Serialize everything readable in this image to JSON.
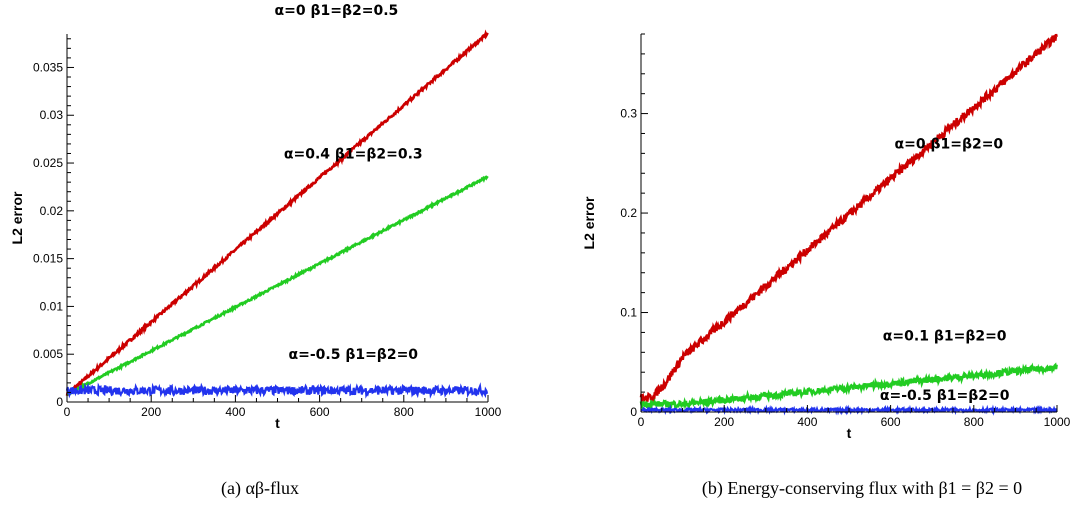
{
  "chart_data": [
    {
      "type": "line",
      "xlabel": "t",
      "ylabel": "L2 error",
      "xlim": [
        0,
        1000
      ],
      "ylim": [
        0,
        0.0385
      ],
      "xticks": [
        0,
        200,
        400,
        600,
        800,
        1000
      ],
      "xtick_labels": [
        "0",
        "200",
        "400",
        "600",
        "800",
        "1000"
      ],
      "yticks": [
        0,
        0.005,
        0.01,
        0.015,
        0.02,
        0.025,
        0.03,
        0.035
      ],
      "ytick_labels": [
        "0",
        "0.005",
        "0.01",
        "0.015",
        "0.02",
        "0.025",
        "0.03",
        "0.035"
      ],
      "grid": false,
      "caption": "(a)  αβ-flux",
      "series": [
        {
          "name": "α=0 β1=β2=0.5",
          "color": "#cc0000",
          "x": [
            0,
            1000
          ],
          "y": [
            0.0008,
            0.0386
          ],
          "noise": 0.00015
        },
        {
          "name": "α=0.4 β1=β2=0.3",
          "color": "#22cc22",
          "x": [
            0,
            1000
          ],
          "y": [
            0.0008,
            0.0236
          ],
          "noise": 0.0001
        },
        {
          "name": "α=-0.5 β1=β2=0",
          "color": "#2233ee",
          "x": [
            0,
            1000
          ],
          "y": [
            0.0012,
            0.0012
          ],
          "noise": 0.00045
        }
      ],
      "annotations": [
        {
          "text": "α=0 β1=β2=0.5",
          "x": 640,
          "y": 0.0405
        },
        {
          "text": "α=0.4 β1=β2=0.3",
          "x": 680,
          "y": 0.0255
        },
        {
          "text": "α=-0.5 β1=β2=0",
          "x": 680,
          "y": 0.0045
        }
      ]
    },
    {
      "type": "line",
      "xlabel": "t",
      "ylabel": "L2 error",
      "xlim": [
        0,
        1000
      ],
      "ylim": [
        0,
        0.38
      ],
      "xticks": [
        0,
        200,
        400,
        600,
        800,
        1000
      ],
      "xtick_labels": [
        "0",
        "200",
        "400",
        "600",
        "800",
        "1000"
      ],
      "yticks": [
        0,
        0.1,
        0.2,
        0.3
      ],
      "ytick_labels": [
        "0",
        "0.1",
        "0.2",
        "0.3"
      ],
      "grid": false,
      "caption": "(b) Energy-conserving flux with β1 = β2 = 0",
      "series": [
        {
          "name": "α=0 β1=β2=0",
          "color": "#cc0000",
          "x": [
            0,
            10,
            30,
            60,
            100,
            1000
          ],
          "y": [
            0.015,
            0.013,
            0.016,
            0.03,
            0.055,
            0.378
          ],
          "noise": 0.004
        },
        {
          "name": "α=0.1 β1=β2=0",
          "color": "#22cc22",
          "x": [
            0,
            100,
            1000
          ],
          "y": [
            0.008,
            0.008,
            0.045
          ],
          "noise": 0.003
        },
        {
          "name": "α=-0.5 β1=β2=0",
          "color": "#2233ee",
          "x": [
            0,
            1000
          ],
          "y": [
            0.002,
            0.002
          ],
          "noise": 0.0015
        }
      ],
      "annotations": [
        {
          "text": "α=0 β1=β2=0",
          "x": 740,
          "y": 0.265
        },
        {
          "text": "α=0.1 β1=β2=0",
          "x": 730,
          "y": 0.072
        },
        {
          "text": "α=-0.5 β1=β2=0",
          "x": 730,
          "y": 0.012
        }
      ]
    }
  ]
}
